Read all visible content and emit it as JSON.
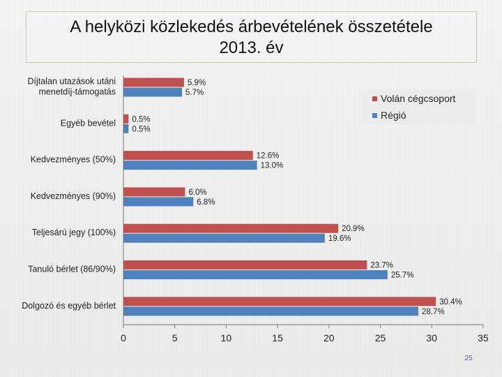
{
  "chart_data": {
    "type": "bar",
    "orientation": "horizontal",
    "title": "A helyközi közlekedés árbevételének összetétele",
    "subtitle": "2013. év",
    "categories": [
      [
        "Díjtalan utazások utáni",
        "menetdíj-támogatás"
      ],
      [
        "Egyéb bevétel"
      ],
      [
        "Kedvezményes (50%)"
      ],
      [
        "Kedvezményes (90%)"
      ],
      [
        "Teljesárú jegy (100%)"
      ],
      [
        "Tanuló bérlet (86/90%)"
      ],
      [
        "Dolgozó és egyéb bérlet"
      ]
    ],
    "series": [
      {
        "name": "Volán cégcsoport",
        "color": "#c0504d",
        "values": [
          5.9,
          0.5,
          12.6,
          6.0,
          20.9,
          23.7,
          30.4
        ],
        "labels": [
          "5.9%",
          "0.5%",
          "12.6%",
          "6.0%",
          "20.9%",
          "23.7%",
          "30.4%"
        ]
      },
      {
        "name": "Régió",
        "color": "#4f81bd",
        "values": [
          5.7,
          0.5,
          13.0,
          6.8,
          19.6,
          25.7,
          28.7
        ],
        "labels": [
          "5.7%",
          "0.5%",
          "13.0%",
          "6.8%",
          "19.6%",
          "25.7%",
          "28.7%"
        ]
      }
    ],
    "xlim": [
      0,
      35
    ],
    "xticks": [
      "0",
      "5",
      "10",
      "15",
      "20",
      "25",
      "30",
      "35"
    ],
    "legend_position": "top-right",
    "grid": false
  },
  "footer": {
    "page_number": "25"
  }
}
